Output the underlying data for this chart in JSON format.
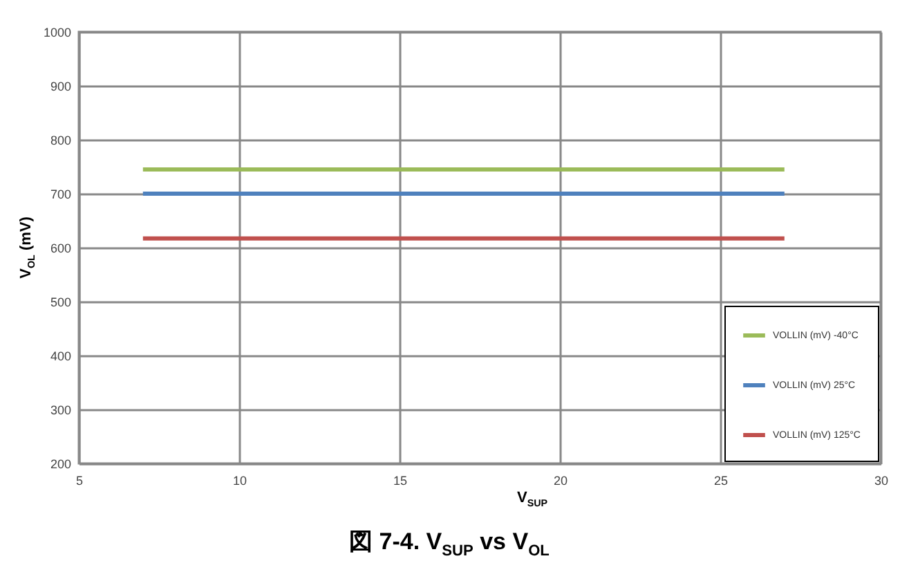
{
  "chart_data": {
    "type": "line",
    "title": "図 7-4. V$_{SUP}$ vs V$_{OL}$",
    "xlabel": "V$_{SUP}$",
    "ylabel": "V$_{OL}$ (mV)",
    "x": [
      7,
      27
    ],
    "series": [
      {
        "name": "VOLLIN (mV) -40°C",
        "color": "#9bbb59",
        "values": [
          745,
          745
        ]
      },
      {
        "name": "VOLLIN (mV) 25°C",
        "color": "#4f81bd",
        "values": [
          700,
          700
        ]
      },
      {
        "name": "VOLLIN (mV) 125°C",
        "color": "#c0504d",
        "values": [
          617,
          617
        ]
      }
    ],
    "xlim": [
      5,
      30
    ],
    "xticks": [
      5,
      10,
      15,
      20,
      25,
      30
    ],
    "ylim": [
      200,
      1000
    ],
    "yticks": [
      200,
      300,
      400,
      500,
      600,
      700,
      800,
      900,
      1000
    ],
    "grid": true,
    "legend": "bottom right",
    "marker": "none",
    "line_style": "solid"
  }
}
